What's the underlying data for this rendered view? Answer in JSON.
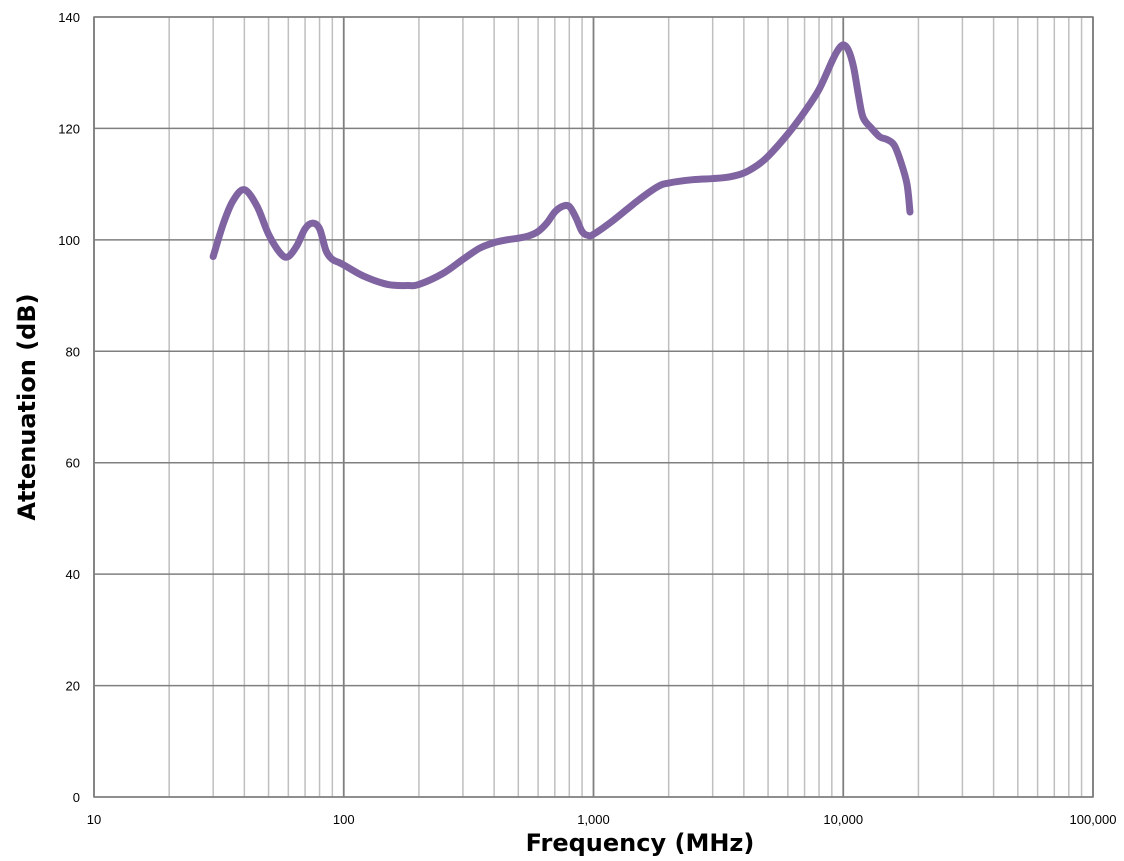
{
  "chart_data": {
    "type": "line",
    "title": "",
    "xlabel": "Frequency (MHz)",
    "ylabel": "Attenuation (dB)",
    "x_scale": "log",
    "xlim": [
      10,
      100000
    ],
    "ylim": [
      0,
      140
    ],
    "grid": true,
    "legend": "none",
    "x_ticks": [
      {
        "value": 10,
        "label": "10"
      },
      {
        "value": 100,
        "label": "100"
      },
      {
        "value": 1000,
        "label": "1,000"
      },
      {
        "value": 10000,
        "label": "10,000"
      },
      {
        "value": 100000,
        "label": "100,000"
      }
    ],
    "y_ticks": [
      {
        "value": 0,
        "label": "0"
      },
      {
        "value": 20,
        "label": "20"
      },
      {
        "value": 40,
        "label": "40"
      },
      {
        "value": 60,
        "label": "60"
      },
      {
        "value": 80,
        "label": "80"
      },
      {
        "value": 100,
        "label": "100"
      },
      {
        "value": 120,
        "label": "120"
      },
      {
        "value": 140,
        "label": "140"
      }
    ],
    "series": [
      {
        "color": "#8064A2",
        "x": [
          30,
          33,
          36,
          40,
          45,
          50,
          56,
          60,
          65,
          70,
          75,
          80,
          85,
          90,
          95,
          100,
          120,
          150,
          180,
          200,
          250,
          300,
          350,
          400,
          450,
          500,
          550,
          600,
          650,
          700,
          750,
          800,
          850,
          900,
          950,
          1000,
          1200,
          1500,
          1800,
          2000,
          2500,
          3000,
          3500,
          4000,
          4500,
          5000,
          6000,
          7000,
          8000,
          9000,
          9500,
          10000,
          10500,
          11000,
          11500,
          12000,
          13000,
          14000,
          15000,
          16000,
          17000,
          18000,
          18500
        ],
        "y": [
          97,
          103,
          107,
          109,
          106,
          101,
          97.5,
          97,
          99,
          102,
          103,
          102,
          98,
          96.5,
          96,
          95.5,
          93.5,
          92,
          91.8,
          92,
          94,
          96.5,
          98.5,
          99.5,
          100,
          100.3,
          100.7,
          101.5,
          103,
          105,
          106,
          106,
          104,
          101.5,
          100.8,
          101,
          103.5,
          107,
          109.5,
          110.2,
          110.8,
          111,
          111.3,
          112,
          113.3,
          115,
          119,
          123,
          127,
          132,
          134,
          135,
          134,
          131,
          126,
          122,
          120,
          118.5,
          118,
          117,
          114,
          110,
          105
        ]
      }
    ]
  }
}
